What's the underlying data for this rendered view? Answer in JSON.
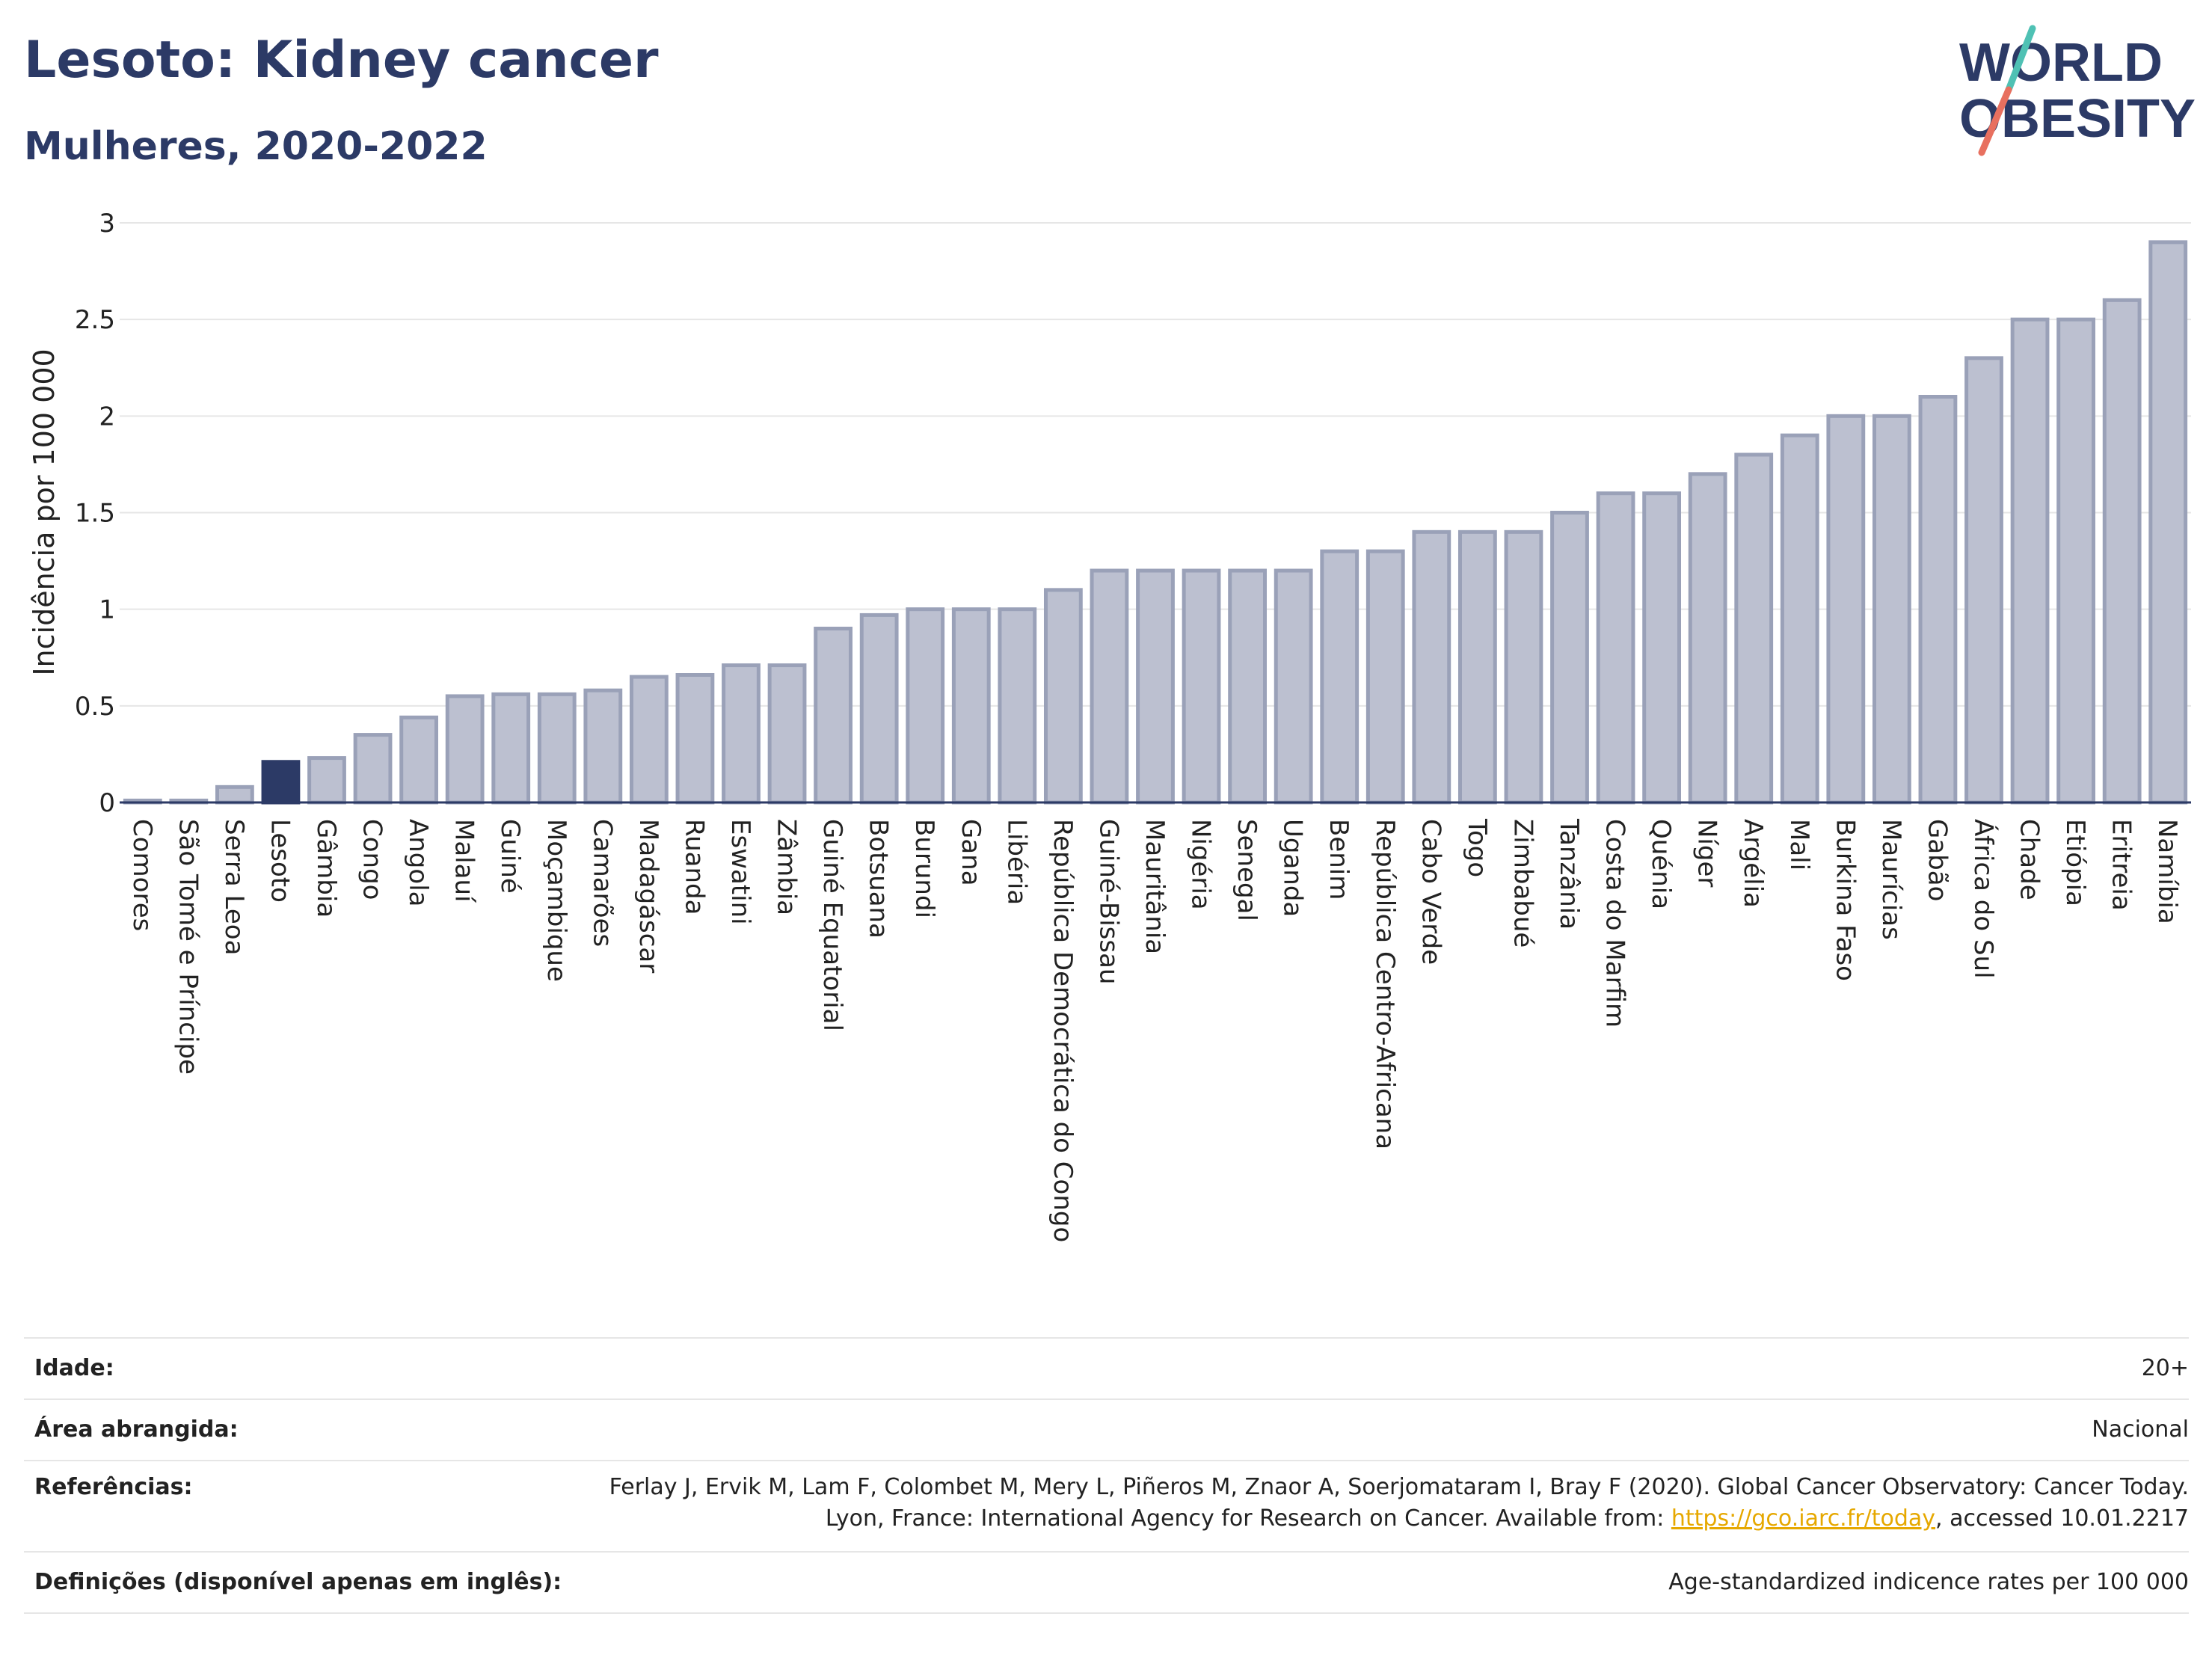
{
  "title": "Lesoto: Kidney cancer",
  "subtitle": "Mulheres, 2020-2022",
  "logo": {
    "line1": "WORLD",
    "line2": "OBESITY"
  },
  "colors": {
    "bar": "#bcc0d0",
    "bar_stroke": "#9aa1b8",
    "highlight": "#2c3a66",
    "title": "#2c3a66",
    "link": "#e6a800"
  },
  "chart_data": {
    "type": "bar",
    "ylabel": "Incidência por 100 000",
    "ylim": [
      0,
      3
    ],
    "yticks": [
      "0",
      "0.5",
      "1",
      "1.5",
      "2",
      "2.5",
      "3"
    ],
    "highlight": "Lesoto",
    "grid": true,
    "categories": [
      "Comores",
      "São Tomé e Príncipe",
      "Serra Leoa",
      "Lesoto",
      "Gâmbia",
      "Congo",
      "Angola",
      "Malauí",
      "Guiné",
      "Moçambique",
      "Camarões",
      "Madagáscar",
      "Ruanda",
      "Eswatini",
      "Zâmbia",
      "Guiné Equatorial",
      "Botsuana",
      "Burundi",
      "Gana",
      "Libéria",
      "República Democrática do Congo",
      "Guiné-Bissau",
      "Mauritânia",
      "Nigéria",
      "Senegal",
      "Uganda",
      "Benim",
      "República Centro-Africana",
      "Cabo Verde",
      "Togo",
      "Zimbabué",
      "Tanzânia",
      "Costa do Marfim",
      "Quénia",
      "Níger",
      "Argélia",
      "Mali",
      "Burkina Faso",
      "Maurícias",
      "Gabão",
      "África do Sul",
      "Chade",
      "Etiópia",
      "Eritreia",
      "Namíbia"
    ],
    "values": [
      0.01,
      0.01,
      0.08,
      0.21,
      0.23,
      0.35,
      0.44,
      0.55,
      0.56,
      0.56,
      0.58,
      0.65,
      0.66,
      0.71,
      0.71,
      0.9,
      0.97,
      1.0,
      1.0,
      1.0,
      1.1,
      1.2,
      1.2,
      1.2,
      1.2,
      1.2,
      1.3,
      1.3,
      1.4,
      1.4,
      1.4,
      1.5,
      1.6,
      1.6,
      1.7,
      1.8,
      1.9,
      2.0,
      2.0,
      2.1,
      2.3,
      2.5,
      2.5,
      2.6,
      2.9
    ]
  },
  "meta": {
    "age_label": "Idade:",
    "age_value": "20+",
    "area_label": "Área abrangida:",
    "area_value": "Nacional",
    "ref_label": "Referências:",
    "ref_text": "Ferlay J, Ervik M, Lam F, Colombet M, Mery L, Piñeros M, Znaor A, Soerjomataram I, Bray F (2020). Global Cancer Observatory: Cancer Today. Lyon, France: International Agency for Research on Cancer. Available from: ",
    "ref_link": "https://gco.iarc.fr/today",
    "ref_suffix": ", accessed 10.01.2217",
    "def_label": "Definições (disponível apenas em inglês):",
    "def_value": "Age-standardized indicence rates per 100 000"
  }
}
